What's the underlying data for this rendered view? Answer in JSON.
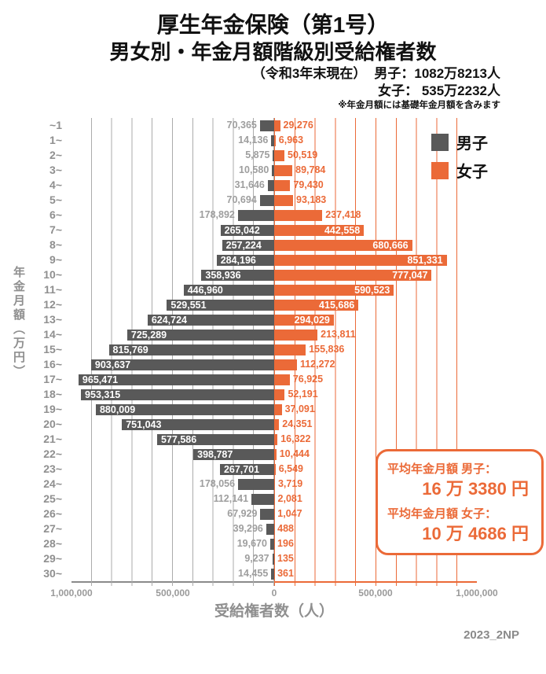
{
  "header": {
    "title": "厚生年金保険（第1号）",
    "subtitle": "男女別・年金月額階級別受給権者数",
    "asof": "（令和3年末現在）",
    "male_total": "男子：1082万8213人",
    "female_total": "女子： 535万2232人",
    "note": "※年金月額には基礎年金月額を含みます"
  },
  "legend": {
    "men": "男子",
    "women": "女子"
  },
  "averages": {
    "men_label": "平均年金月額 男子：",
    "men_value": "16 万 3380 円",
    "women_label": "平均年金月額 女子：",
    "women_value": "10 万 4686 円"
  },
  "footer": {
    "code": "2023_2NP"
  },
  "colors": {
    "men_bar": "#595959",
    "women_bar": "#EB6A38",
    "grid_left": "#ABABAB",
    "grid_right": "#EB6A38",
    "men_outside_label": "#9E9E9E",
    "axis_text": "#9A9A9A"
  },
  "chart_data": {
    "type": "bar",
    "layout": "horizontal-butterfly",
    "categories": [
      "~1",
      "1~",
      "2~",
      "3~",
      "4~",
      "5~",
      "6~",
      "7~",
      "8~",
      "9~",
      "10~",
      "11~",
      "12~",
      "13~",
      "14~",
      "15~",
      "16~",
      "17~",
      "18~",
      "19~",
      "20~",
      "21~",
      "22~",
      "23~",
      "24~",
      "25~",
      "26~",
      "27~",
      "28~",
      "29~",
      "30~"
    ],
    "series": [
      {
        "name": "男子",
        "side": "left",
        "color": "#595959",
        "values": [
          70365,
          14136,
          5875,
          10580,
          31646,
          70694,
          178892,
          265042,
          257224,
          284196,
          358936,
          446960,
          529551,
          624724,
          725289,
          815769,
          903637,
          965471,
          953315,
          880009,
          751043,
          577586,
          398787,
          267701,
          178056,
          112141,
          67929,
          39296,
          19670,
          9237,
          14455
        ]
      },
      {
        "name": "女子",
        "side": "right",
        "color": "#EB6A38",
        "values": [
          29276,
          6963,
          50519,
          89784,
          79430,
          93183,
          237418,
          442558,
          680666,
          851331,
          777047,
          590523,
          415686,
          294029,
          213811,
          155836,
          112272,
          76925,
          52191,
          37091,
          24351,
          16322,
          10444,
          6549,
          3719,
          2081,
          1047,
          488,
          196,
          135,
          361
        ]
      }
    ],
    "xlabel": "受給権者数（人）",
    "ylabel": "年金月額（万円）",
    "axis_max_per_side": 1000000,
    "gridline_interval": 100000,
    "x_ticks": [
      "1,000,000",
      "500,000",
      "0",
      "500,000",
      "1,000,000"
    ],
    "label_inside_threshold": 250000,
    "grid": true,
    "legend_position": "upper right"
  }
}
